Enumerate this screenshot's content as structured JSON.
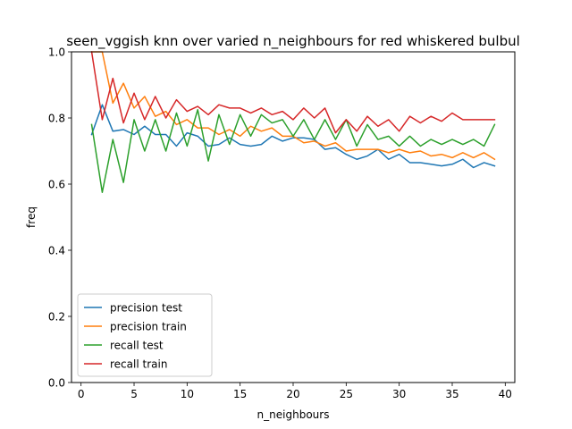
{
  "chart_data": {
    "type": "line",
    "title": "seen_vggish knn over varied n_neighbours for red whiskered bulbul",
    "xlabel": "n_neighbours",
    "ylabel": "freq",
    "xlim": [
      -0.9,
      40.9
    ],
    "ylim": [
      0.0,
      1.0
    ],
    "xticks": [
      0,
      5,
      10,
      15,
      20,
      25,
      30,
      35,
      40
    ],
    "yticks": [
      0.0,
      0.2,
      0.4,
      0.6,
      0.8,
      1.0
    ],
    "xtick_labels": [
      "0",
      "5",
      "10",
      "15",
      "20",
      "25",
      "30",
      "35",
      "40"
    ],
    "ytick_labels": [
      "0.0",
      "0.2",
      "0.4",
      "0.6",
      "0.8",
      "1.0"
    ],
    "grid": false,
    "legend_position": "lower-left",
    "x": [
      1,
      2,
      3,
      4,
      5,
      6,
      7,
      8,
      9,
      10,
      11,
      12,
      13,
      14,
      15,
      16,
      17,
      18,
      19,
      20,
      21,
      22,
      23,
      24,
      25,
      26,
      27,
      28,
      29,
      30,
      31,
      32,
      33,
      34,
      35,
      36,
      37,
      38,
      39
    ],
    "series": [
      {
        "name": "precision test",
        "color": "#1f77b4",
        "values": [
          0.75,
          0.84,
          0.76,
          0.765,
          0.75,
          0.775,
          0.75,
          0.75,
          0.715,
          0.755,
          0.745,
          0.715,
          0.72,
          0.74,
          0.72,
          0.715,
          0.72,
          0.745,
          0.73,
          0.74,
          0.74,
          0.735,
          0.705,
          0.71,
          0.69,
          0.675,
          0.685,
          0.705,
          0.675,
          0.69,
          0.665,
          0.665,
          0.66,
          0.655,
          0.66,
          0.675,
          0.65,
          0.665,
          0.655
        ]
      },
      {
        "name": "precision train",
        "color": "#ff7f0e",
        "values": [
          1.0,
          1.0,
          0.845,
          0.905,
          0.83,
          0.865,
          0.805,
          0.82,
          0.78,
          0.795,
          0.77,
          0.77,
          0.75,
          0.765,
          0.745,
          0.775,
          0.76,
          0.77,
          0.745,
          0.745,
          0.725,
          0.73,
          0.715,
          0.725,
          0.7,
          0.705,
          0.705,
          0.705,
          0.695,
          0.705,
          0.695,
          0.7,
          0.685,
          0.69,
          0.68,
          0.695,
          0.68,
          0.695,
          0.675
        ]
      },
      {
        "name": "recall test",
        "color": "#2ca02c",
        "values": [
          0.78,
          0.575,
          0.735,
          0.605,
          0.795,
          0.7,
          0.795,
          0.7,
          0.815,
          0.715,
          0.825,
          0.67,
          0.81,
          0.72,
          0.81,
          0.745,
          0.81,
          0.785,
          0.795,
          0.745,
          0.795,
          0.735,
          0.795,
          0.735,
          0.795,
          0.715,
          0.78,
          0.735,
          0.745,
          0.715,
          0.745,
          0.715,
          0.735,
          0.72,
          0.735,
          0.72,
          0.735,
          0.715,
          0.78
        ]
      },
      {
        "name": "recall train",
        "color": "#d62728",
        "values": [
          1.0,
          0.795,
          0.92,
          0.785,
          0.875,
          0.795,
          0.865,
          0.8,
          0.855,
          0.82,
          0.835,
          0.81,
          0.84,
          0.83,
          0.83,
          0.815,
          0.83,
          0.81,
          0.82,
          0.795,
          0.83,
          0.8,
          0.83,
          0.755,
          0.795,
          0.76,
          0.805,
          0.775,
          0.795,
          0.76,
          0.805,
          0.785,
          0.805,
          0.79,
          0.815,
          0.795,
          0.795,
          0.795,
          0.795
        ]
      }
    ]
  }
}
